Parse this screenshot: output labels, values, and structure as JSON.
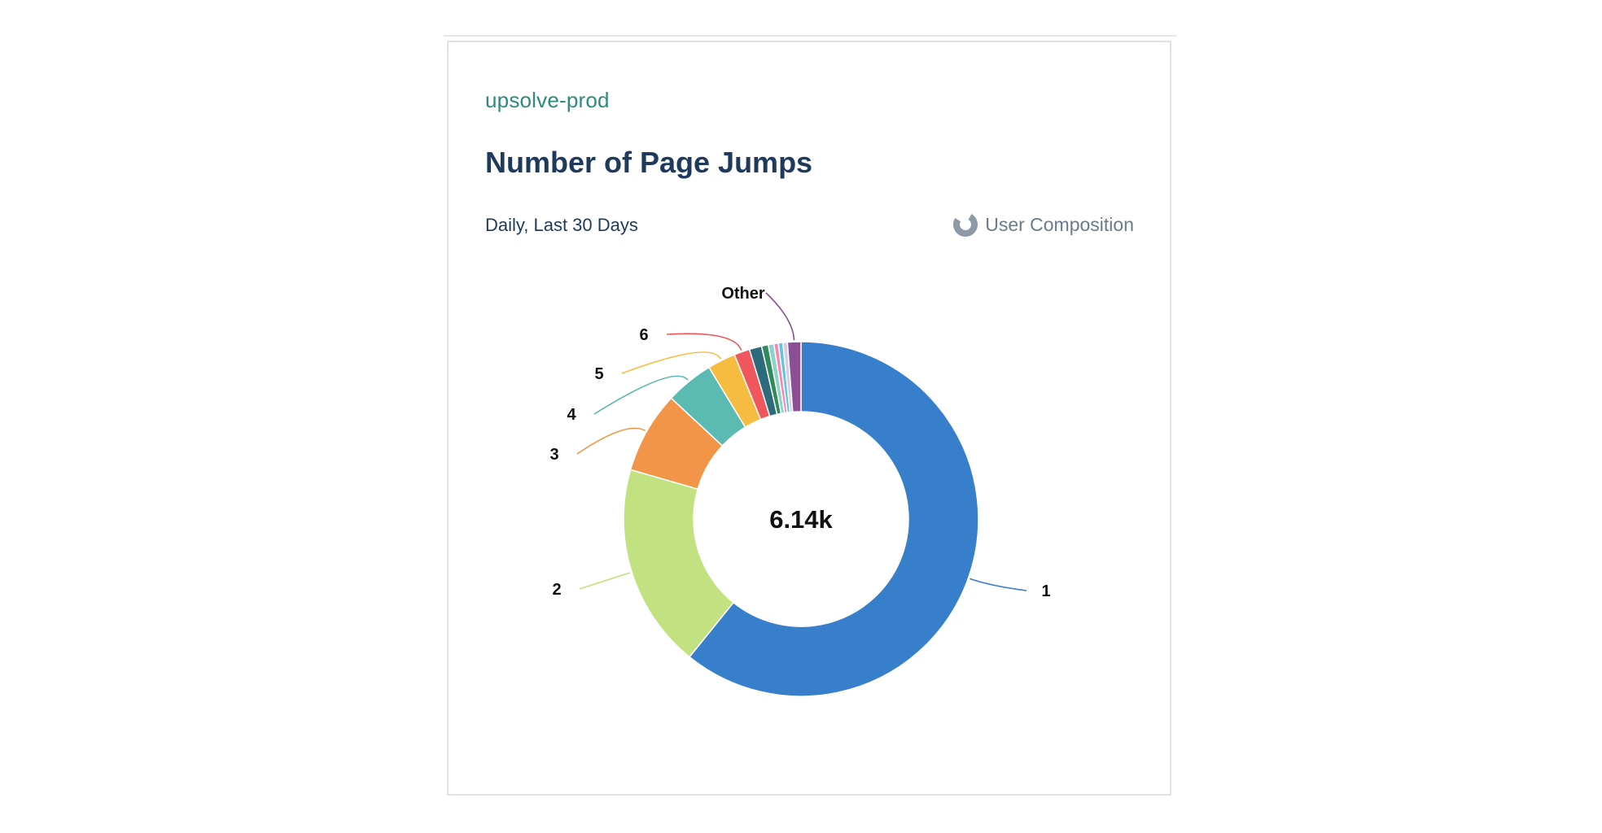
{
  "card": {
    "project": "upsolve-prod",
    "title": "Number of Page Jumps",
    "range": "Daily, Last 30 Days",
    "composition_label": "User Composition"
  },
  "chart_data": {
    "type": "pie",
    "style": "donut",
    "title": "Number of Page Jumps",
    "center_label": "6.14k",
    "slices": [
      {
        "label": "1",
        "value": 59.6,
        "color": "#377ecb"
      },
      {
        "label": "2",
        "value": 18.3,
        "color": "#c2e281"
      },
      {
        "label": "3",
        "value": 7.3,
        "color": "#f29549"
      },
      {
        "label": "4",
        "value": 4.3,
        "color": "#5bbab2"
      },
      {
        "label": "5",
        "value": 2.5,
        "color": "#f5bc41"
      },
      {
        "label": "6",
        "value": 1.4,
        "color": "#f0575d"
      },
      {
        "label": "",
        "value": 1.1,
        "color": "#2d6b7a"
      },
      {
        "label": "",
        "value": 0.6,
        "color": "#2f8a5d"
      },
      {
        "label": "",
        "value": 0.5,
        "color": "#8ed3c7"
      },
      {
        "label": "",
        "value": 0.4,
        "color": "#f28ab6"
      },
      {
        "label": "",
        "value": 0.4,
        "color": "#66c3e0"
      },
      {
        "label": "",
        "value": 0.4,
        "color": "#d5cde6"
      },
      {
        "label": "Other",
        "value": 1.2,
        "color": "#8b4f96"
      }
    ]
  }
}
